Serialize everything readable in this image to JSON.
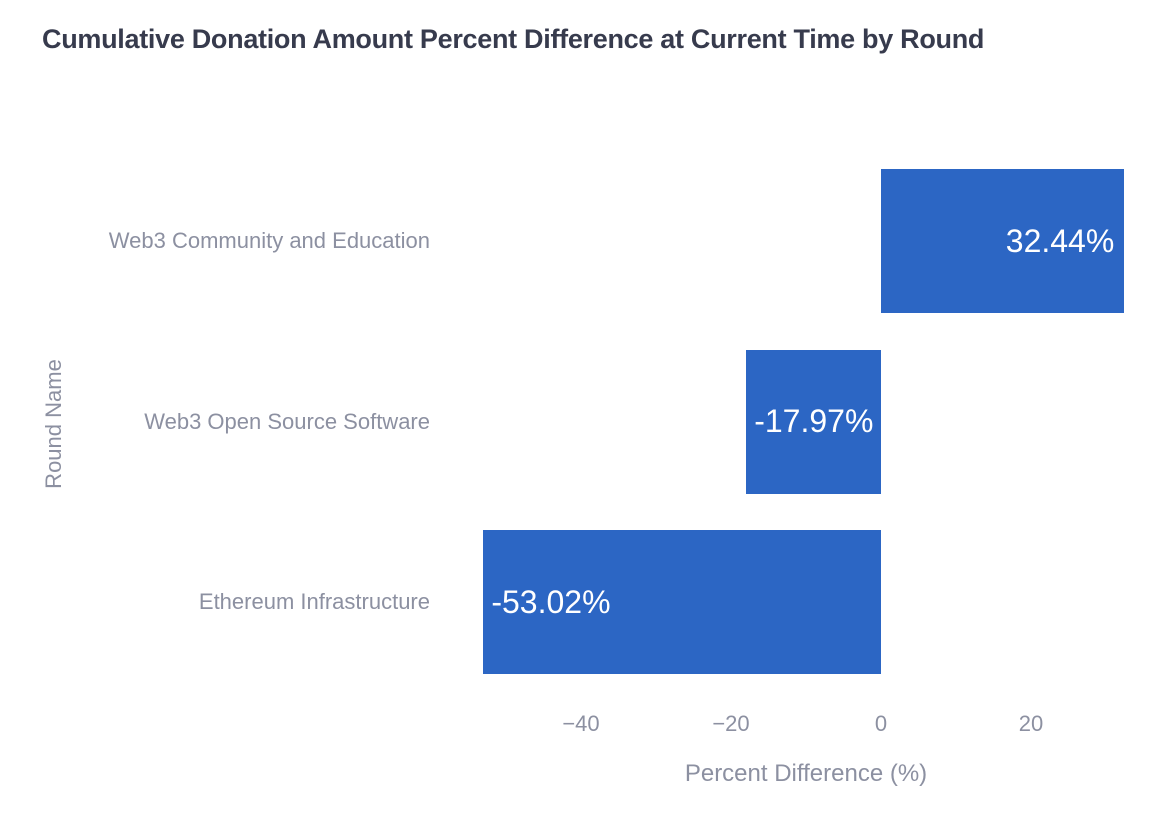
{
  "chart_data": {
    "type": "bar",
    "orientation": "horizontal",
    "title": "Cumulative Donation Amount Percent Difference at Current Time by Round",
    "xlabel": "Percent Difference (%)",
    "ylabel": "Round Name",
    "categories": [
      "Web3 Community and Education",
      "Web3 Open Source Software",
      "Ethereum Infrastructure"
    ],
    "values": [
      32.44,
      -17.97,
      -53.02
    ],
    "value_labels": [
      "32.44%",
      "-17.97%",
      "-53.02%"
    ],
    "x_ticks": [
      -40,
      -20,
      0,
      20
    ],
    "x_tick_labels": [
      "−40",
      "−20",
      "0",
      "20"
    ],
    "xlim": [
      -57,
      33.5
    ],
    "grid": false,
    "legend": false,
    "bar_color": "#2c66c4",
    "title_color": "#373b4d",
    "axis_text_color": "#8c90a1",
    "value_label_color": "#ffffff"
  }
}
